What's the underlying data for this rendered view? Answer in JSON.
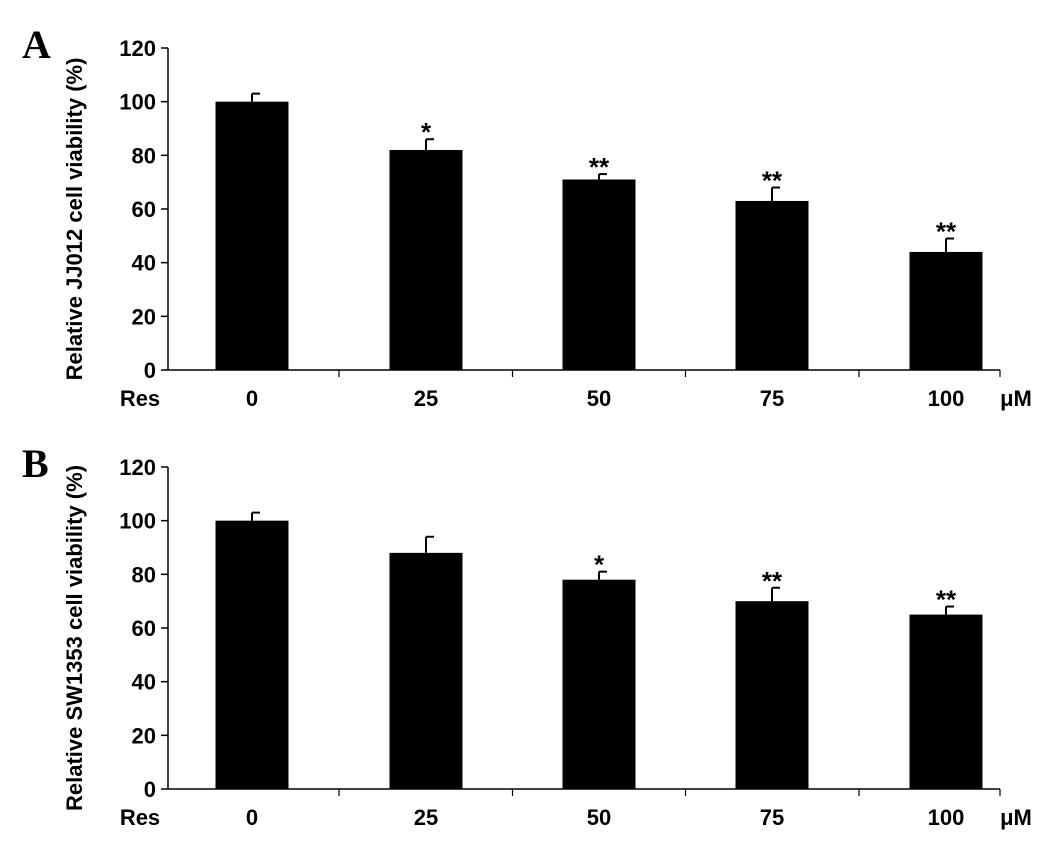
{
  "chart_data": [
    {
      "panel": "A",
      "type": "bar",
      "ylabel": "Relative JJ012 cell viability (%)",
      "xprefix": "Res",
      "xunit": "μM",
      "categories": [
        "0",
        "25",
        "50",
        "75",
        "100"
      ],
      "values": [
        100,
        82,
        71,
        63,
        44
      ],
      "errors": [
        3,
        4,
        2,
        5,
        5
      ],
      "significance": [
        "",
        "*",
        "**",
        "**",
        "**"
      ],
      "ylim": [
        0,
        120
      ],
      "yticks": [
        0,
        20,
        40,
        60,
        80,
        100,
        120
      ],
      "colors": {
        "bar": "#000000",
        "axis": "#000000"
      }
    },
    {
      "panel": "B",
      "type": "bar",
      "ylabel": "Relative SW1353 cell viability (%)",
      "xprefix": "Res",
      "xunit": "μM",
      "categories": [
        "0",
        "25",
        "50",
        "75",
        "100"
      ],
      "values": [
        100,
        88,
        78,
        70,
        65
      ],
      "errors": [
        3,
        6,
        3,
        5,
        3
      ],
      "significance": [
        "",
        "",
        "*",
        "**",
        "**"
      ],
      "ylim": [
        0,
        120
      ],
      "yticks": [
        0,
        20,
        40,
        60,
        80,
        100,
        120
      ],
      "colors": {
        "bar": "#000000",
        "axis": "#000000"
      }
    }
  ]
}
